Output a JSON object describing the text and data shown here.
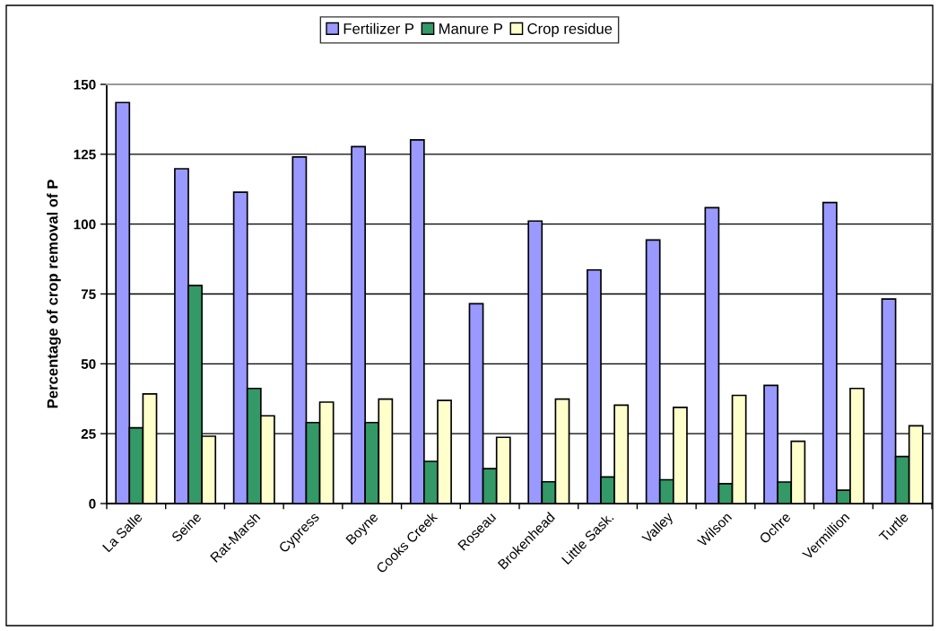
{
  "chart_data": {
    "type": "bar",
    "ylabel": "Percentage of crop removal of P",
    "categories": [
      "La Salle",
      "Seine",
      "Rat-Marsh",
      "Cypress",
      "Boyne",
      "Cooks Creek",
      "Roseau",
      "Brokenhead",
      "Little Sask.",
      "Valley",
      "Wilson",
      "Ochre",
      "Vermillion",
      "Turtle"
    ],
    "series": [
      {
        "name": "Fertilizer P",
        "color": "#9999ff",
        "values": [
          143.5,
          119.8,
          111.4,
          124.0,
          127.7,
          130.1,
          71.5,
          101.1,
          83.6,
          94.3,
          105.9,
          42.3,
          107.7,
          73.2
        ]
      },
      {
        "name": "Manure P",
        "color": "#339966",
        "values": [
          27.1,
          78.0,
          41.2,
          29.0,
          29.0,
          15.1,
          12.5,
          7.8,
          9.5,
          8.5,
          7.1,
          7.7,
          4.8,
          16.8
        ]
      },
      {
        "name": "Crop residue",
        "color": "#ffffcc",
        "values": [
          39.2,
          24.1,
          31.4,
          36.3,
          37.4,
          36.9,
          23.7,
          37.4,
          35.2,
          34.4,
          38.7,
          22.3,
          41.2,
          27.8
        ]
      }
    ],
    "ylim": [
      0,
      150
    ],
    "yticks": [
      0,
      25,
      50,
      75,
      100,
      125,
      150
    ],
    "grid": "y",
    "legend": "top"
  }
}
